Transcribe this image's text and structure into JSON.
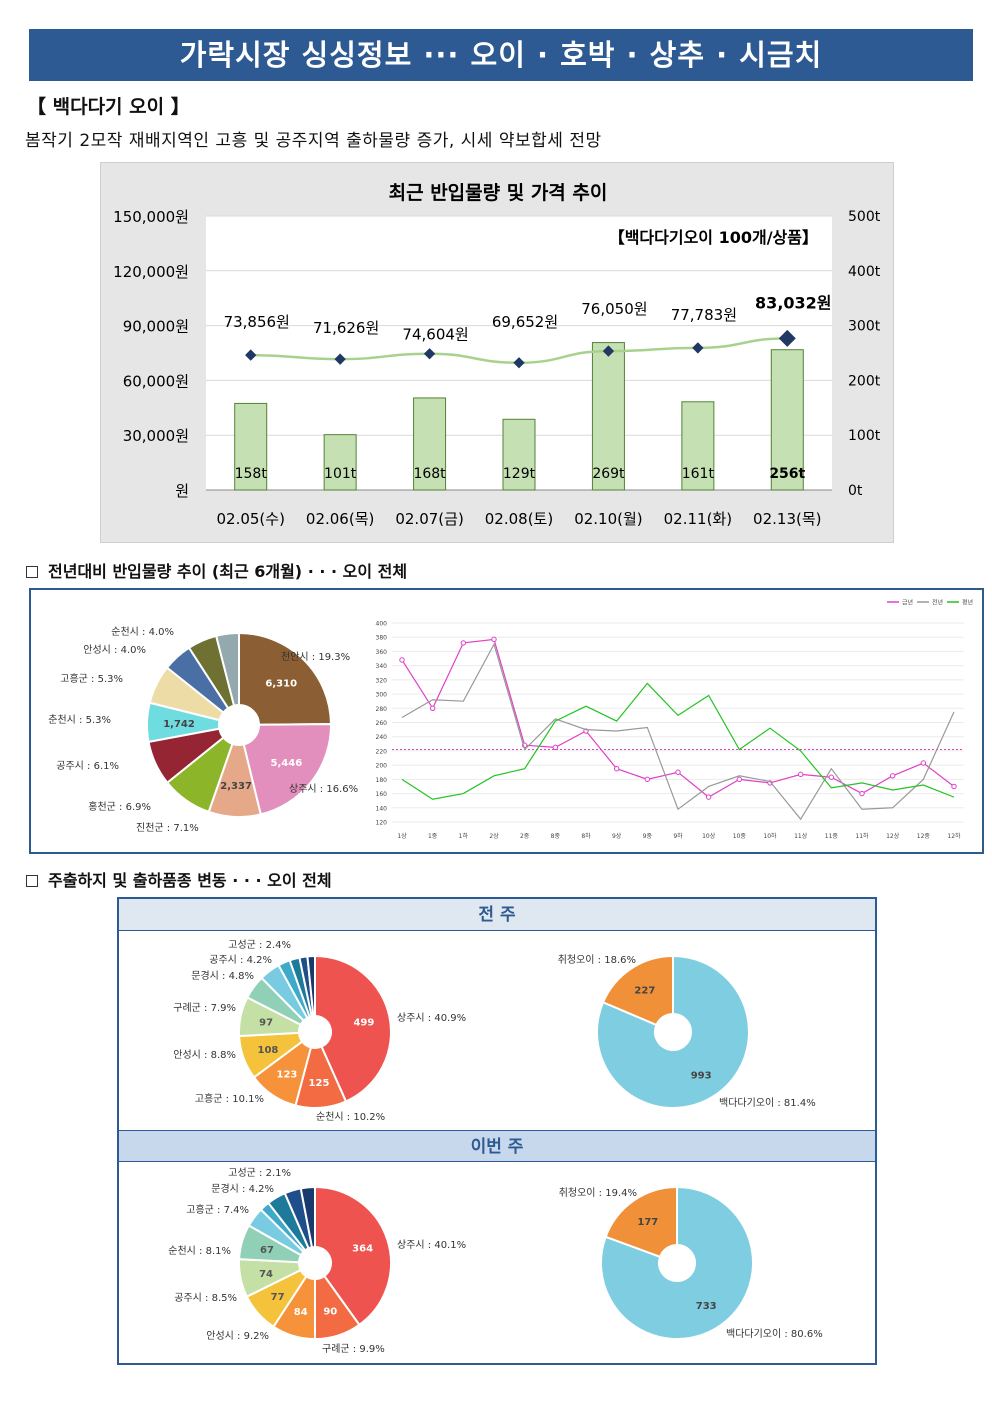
{
  "header": {
    "banner": "가락시장 싱싱정보 ··· 오이 · 호박 · 상추 · 시금치",
    "subtitle": "【 백다다기 오이 】",
    "summary": "봄작기 2모작 재배지역인 고흥 및 공주지역 출하물량 증가, 시세 약보합세 전망"
  },
  "sections": {
    "yoy": "전년대비 반입물량 추이 (최근 6개월) · · · 오이 전체",
    "origin": "주출하지 및 출하품종 변동 · · · 오이 전체",
    "prev_week": "전 주",
    "this_week": "이번 주"
  },
  "colors": {
    "banner": "#2d5a92",
    "bar_fill": "#c5e0b3",
    "bar_stroke": "#548235",
    "price_line": "#a9d18e",
    "marker": "#1f3864"
  },
  "chart_data": [
    {
      "id": "main",
      "type": "bar",
      "title": "최근 반입물량 및 가격 추이",
      "annotation": "【백다다기오이 100개/상품】",
      "categories": [
        "02.05(수)",
        "02.06(목)",
        "02.07(금)",
        "02.08(토)",
        "02.10(월)",
        "02.11(화)",
        "02.13(목)"
      ],
      "series": [
        {
          "name": "반입물량",
          "unit": "t",
          "values": [
            158,
            101,
            168,
            129,
            269,
            161,
            256
          ],
          "labels": [
            "158t",
            "101t",
            "168t",
            "129t",
            "269t",
            "161t",
            "256t"
          ]
        },
        {
          "name": "가격",
          "unit": "원",
          "type": "line",
          "values": [
            73856,
            71626,
            74604,
            69652,
            76050,
            77783,
            83032
          ],
          "labels": [
            "73,856원",
            "71,626원",
            "74,604원",
            "69,652원",
            "76,050원",
            "77,783원",
            "83,032원"
          ]
        }
      ],
      "y_left": {
        "ylim": [
          0,
          150000
        ],
        "ticks": [
          "원",
          "30,000원",
          "60,000원",
          "90,000원",
          "120,000원",
          "150,000원"
        ]
      },
      "y_right": {
        "ylim": [
          0,
          500
        ],
        "ticks": [
          "0t",
          "100t",
          "200t",
          "300t",
          "400t",
          "500t"
        ]
      }
    },
    {
      "id": "yoy_pie",
      "type": "pie",
      "slices": [
        {
          "label": "천안시 : 19.3%",
          "value": 19.3,
          "inner": "6,310",
          "color": "#8b5e34"
        },
        {
          "label": "상주시 : 16.6%",
          "value": 16.6,
          "inner": "5,446",
          "color": "#e38fbd"
        },
        {
          "label": "진천군 : 7.1%",
          "value": 7.1,
          "inner": "2,337",
          "color": "#e5a98a"
        },
        {
          "label": "홍천군 : 6.9%",
          "value": 6.9,
          "inner": "",
          "color": "#8cb52a"
        },
        {
          "label": "공주시 : 6.1%",
          "value": 6.1,
          "inner": "",
          "color": "#962534"
        },
        {
          "label": "춘천시 : 5.3%",
          "value": 5.3,
          "inner": "1,742",
          "color": "#6fdce0"
        },
        {
          "label": "고흥군 : 5.3%",
          "value": 5.3,
          "inner": "",
          "color": "#eedca6"
        },
        {
          "label": "안성시 : 4.0%",
          "value": 4.0,
          "inner": "",
          "color": "#4a6fa5"
        },
        {
          "label": "순천시 : 4.0%",
          "value": 4.0,
          "inner": "",
          "color": "#6e7131"
        },
        {
          "label": "",
          "value": 3.1,
          "inner": "",
          "color": "#93a9ae"
        }
      ]
    },
    {
      "id": "yoy_line",
      "type": "line",
      "legend": [
        "금년",
        "전년",
        "평년"
      ],
      "x": [
        "1상",
        "1중",
        "1하",
        "2상",
        "2중",
        "8중",
        "8하",
        "9상",
        "9중",
        "9하",
        "10상",
        "10중",
        "10하",
        "11상",
        "11중",
        "11하",
        "12상",
        "12중",
        "12하"
      ],
      "ylim": [
        120,
        400
      ],
      "yticks": [
        120,
        140,
        160,
        180,
        200,
        220,
        240,
        260,
        280,
        300,
        320,
        340,
        360,
        380,
        400
      ],
      "reference": 222,
      "series": [
        {
          "name": "금년",
          "color": "#e040c8",
          "values": [
            348,
            280,
            372,
            377,
            228,
            225,
            248,
            195,
            180,
            190,
            155,
            180,
            175,
            187,
            183,
            160,
            185,
            203,
            170
          ]
        },
        {
          "name": "전년",
          "color": "#999999",
          "values": [
            267,
            292,
            290,
            370,
            222,
            265,
            250,
            248,
            253,
            138,
            170,
            185,
            177,
            124,
            195,
            138,
            140,
            180,
            275
          ]
        },
        {
          "name": "평년",
          "color": "#22c322",
          "values": [
            180,
            152,
            160,
            185,
            195,
            262,
            283,
            262,
            315,
            270,
            298,
            222,
            252,
            220,
            168,
            175,
            165,
            172,
            155
          ]
        }
      ]
    },
    {
      "id": "prev_origin",
      "type": "pie",
      "slices": [
        {
          "label": "상주시 : 40.9%",
          "value": 40.9,
          "inner": "499",
          "color": "#ef5350"
        },
        {
          "label": "순천시 : 10.2%",
          "value": 10.2,
          "inner": "125",
          "color": "#f26b42"
        },
        {
          "label": "고흥군 : 10.1%",
          "value": 10.1,
          "inner": "123",
          "color": "#f5923a"
        },
        {
          "label": "안성시 : 8.8%",
          "value": 8.8,
          "inner": "108",
          "color": "#f5c23c"
        },
        {
          "label": "구례군 : 7.9%",
          "value": 7.9,
          "inner": "97",
          "color": "#c5e0a5"
        },
        {
          "label": "문경시 : 4.8%",
          "value": 4.8,
          "inner": "",
          "color": "#8fd0b6"
        },
        {
          "label": "공주시 : 4.2%",
          "value": 4.2,
          "inner": "",
          "color": "#78cbe0"
        },
        {
          "label": "고성군 : 2.4%",
          "value": 2.4,
          "inner": "",
          "color": "#3fa9c9"
        },
        {
          "label": "",
          "value": 2.0,
          "inner": "",
          "color": "#1d7a9a"
        },
        {
          "label": "",
          "value": 1.6,
          "inner": "",
          "color": "#1f4f8a"
        },
        {
          "label": "",
          "value": 1.5,
          "inner": "",
          "color": "#1a3a6e"
        }
      ]
    },
    {
      "id": "prev_variety",
      "type": "pie",
      "slices": [
        {
          "label": "백다다기오이 : 81.4%",
          "value": 81.4,
          "inner": "993",
          "color": "#7fcde0"
        },
        {
          "label": "취청오이 : 18.6%",
          "value": 18.6,
          "inner": "227",
          "color": "#f0913a"
        }
      ]
    },
    {
      "id": "this_origin",
      "type": "pie",
      "slices": [
        {
          "label": "상주시 : 40.1%",
          "value": 40.1,
          "inner": "364",
          "color": "#ef5350"
        },
        {
          "label": "구례군 : 9.9%",
          "value": 9.9,
          "inner": "90",
          "color": "#f26b42"
        },
        {
          "label": "안성시 : 9.2%",
          "value": 9.2,
          "inner": "84",
          "color": "#f5923a"
        },
        {
          "label": "공주시 : 8.5%",
          "value": 8.5,
          "inner": "77",
          "color": "#f5c23c"
        },
        {
          "label": "순천시 : 8.1%",
          "value": 8.1,
          "inner": "74",
          "color": "#c5e0a5"
        },
        {
          "label": "고흥군 : 7.4%",
          "value": 7.4,
          "inner": "67",
          "color": "#8fd0b6"
        },
        {
          "label": "문경시 : 4.2%",
          "value": 4.2,
          "inner": "",
          "color": "#78cbe0"
        },
        {
          "label": "고성군 : 2.1%",
          "value": 2.1,
          "inner": "",
          "color": "#3fa9c9"
        },
        {
          "label": "",
          "value": 4.0,
          "inner": "",
          "color": "#1d7a9a"
        },
        {
          "label": "",
          "value": 3.5,
          "inner": "",
          "color": "#1f4f8a"
        },
        {
          "label": "",
          "value": 3.0,
          "inner": "",
          "color": "#1a3a6e"
        }
      ]
    },
    {
      "id": "this_variety",
      "type": "pie",
      "slices": [
        {
          "label": "백다다기오이 : 80.6%",
          "value": 80.6,
          "inner": "733",
          "color": "#7fcde0"
        },
        {
          "label": "취청오이 : 19.4%",
          "value": 19.4,
          "inner": "177",
          "color": "#f0913a"
        }
      ]
    }
  ]
}
